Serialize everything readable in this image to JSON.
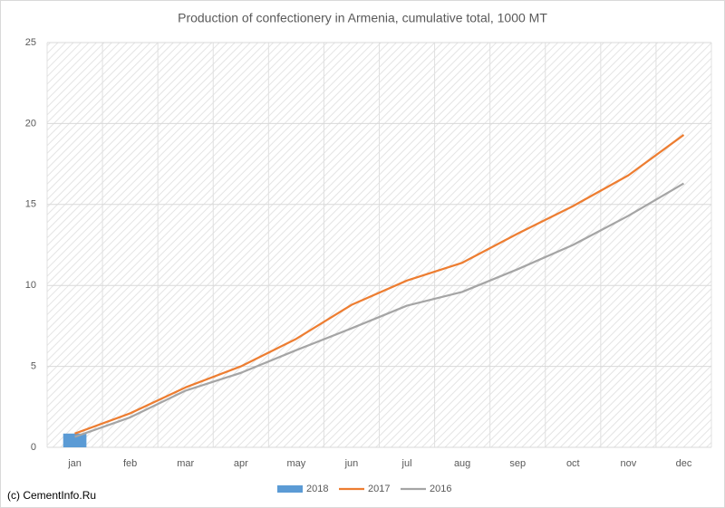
{
  "chart_data": {
    "type": "line",
    "title": "Production of confectionery in Armenia, cumulative total, 1000 MT",
    "source": "(c) CementInfo.Ru",
    "categories": [
      "jan",
      "feb",
      "mar",
      "apr",
      "may",
      "jun",
      "jul",
      "aug",
      "sep",
      "oct",
      "nov",
      "dec"
    ],
    "series": [
      {
        "name": "2018",
        "type": "bar",
        "color": "#5b9bd5",
        "values": [
          0.85,
          null,
          null,
          null,
          null,
          null,
          null,
          null,
          null,
          null,
          null,
          null
        ]
      },
      {
        "name": "2017",
        "type": "line",
        "color": "#ed7d31",
        "values": [
          0.85,
          2.1,
          3.7,
          5.0,
          6.7,
          8.8,
          10.3,
          11.4,
          13.2,
          14.9,
          16.8,
          19.3
        ]
      },
      {
        "name": "2016",
        "type": "line",
        "color": "#a5a5a5",
        "values": [
          0.65,
          1.85,
          3.5,
          4.6,
          6.0,
          7.35,
          8.75,
          9.6,
          11.0,
          12.5,
          14.3,
          16.3
        ]
      }
    ],
    "ylim": [
      0,
      25
    ],
    "yticks": [
      0,
      5,
      10,
      15,
      20,
      25
    ],
    "grid": true,
    "legend": "bottom"
  }
}
